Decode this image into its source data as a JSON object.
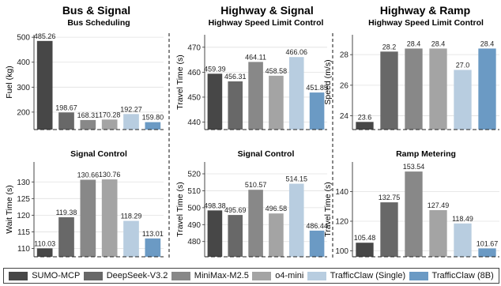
{
  "columns": [
    {
      "title": "Bus & Signal"
    },
    {
      "title": "Highway & Signal"
    },
    {
      "title": "Highway & Ramp"
    }
  ],
  "colors": {
    "SUMO-MCP": "#474747",
    "DeepSeek-V3.2": "#686868",
    "MiniMax-M2.5": "#888888",
    "o4-mini": "#a4a4a4",
    "TrafficClaw (Single)": "#b8cde0",
    "TrafficClaw (8B)": "#6b9ac4"
  },
  "legend": {
    "items": [
      "SUMO-MCP",
      "DeepSeek-V3.2",
      "MiniMax-M2.5",
      "o4-mini",
      "TrafficClaw (Single)",
      "TrafficClaw (8B)"
    ]
  },
  "chart_data": [
    {
      "type": "bar",
      "title": "Bus Scheduling",
      "ylabel": "Fuel (kg)",
      "ylim": [
        130,
        510
      ],
      "yticks": [
        200,
        300,
        400,
        500
      ],
      "categories": [
        "SUMO-MCP",
        "DeepSeek-V3.2",
        "MiniMax-M2.5",
        "o4-mini",
        "TrafficClaw (Single)",
        "TrafficClaw (8B)"
      ],
      "values": [
        485.26,
        198.67,
        168.31,
        170.28,
        192.27,
        159.8
      ],
      "labels": [
        "485.26",
        "198.67",
        "168.31",
        "170.28",
        "192.27",
        "159.80"
      ],
      "grid": true
    },
    {
      "type": "bar",
      "title": "Highway Speed Limit Control",
      "ylabel": "Travel Time (s)",
      "ylim": [
        437,
        475
      ],
      "yticks": [
        440,
        450,
        460,
        470
      ],
      "categories": [
        "SUMO-MCP",
        "DeepSeek-V3.2",
        "MiniMax-M2.5",
        "o4-mini",
        "TrafficClaw (Single)",
        "TrafficClaw (8B)"
      ],
      "values": [
        459.39,
        456.31,
        464.11,
        458.58,
        466.06,
        451.85
      ],
      "labels": [
        "459.39",
        "456.31",
        "464.11",
        "458.58",
        "466.06",
        "451.85"
      ],
      "grid": true
    },
    {
      "type": "bar",
      "title": "Highway Speed Limit Control",
      "ylabel": "Speed (m/s)",
      "ylim": [
        23.1,
        29.3
      ],
      "yticks": [
        24,
        26,
        28
      ],
      "categories": [
        "SUMO-MCP",
        "DeepSeek-V3.2",
        "MiniMax-M2.5",
        "o4-mini",
        "TrafficClaw (Single)",
        "TrafficClaw (8B)"
      ],
      "values": [
        23.6,
        28.2,
        28.4,
        28.4,
        27.0,
        28.4
      ],
      "labels": [
        "23.6",
        "28.2",
        "28.4",
        "28.4",
        "27.0",
        "28.4"
      ],
      "grid": true
    },
    {
      "type": "bar",
      "title": "Signal Control",
      "ylabel": "Wait Time (s)",
      "ylim": [
        107.5,
        136
      ],
      "yticks": [
        110,
        115,
        120,
        125,
        130
      ],
      "categories": [
        "SUMO-MCP",
        "DeepSeek-V3.2",
        "MiniMax-M2.5",
        "o4-mini",
        "TrafficClaw (Single)",
        "TrafficClaw (8B)"
      ],
      "values": [
        110.03,
        119.38,
        130.66,
        130.76,
        118.29,
        113.01
      ],
      "labels": [
        "110.03",
        "119.38",
        "130.66",
        "130.76",
        "118.29",
        "113.01"
      ],
      "grid": true
    },
    {
      "type": "bar",
      "title": "Signal Control",
      "ylabel": "Travel Time (s)",
      "ylim": [
        471,
        527
      ],
      "yticks": [
        480,
        490,
        500,
        510,
        520
      ],
      "categories": [
        "SUMO-MCP",
        "DeepSeek-V3.2",
        "MiniMax-M2.5",
        "o4-mini",
        "TrafficClaw (Single)",
        "TrafficClaw (8B)"
      ],
      "values": [
        498.38,
        495.69,
        510.57,
        496.58,
        514.15,
        486.44
      ],
      "labels": [
        "498.38",
        "495.69",
        "510.57",
        "496.58",
        "514.15",
        "486.44"
      ],
      "grid": true
    },
    {
      "type": "bar",
      "title": "Ramp Metering",
      "ylabel": "Travel Time (s)",
      "ylim": [
        96,
        160
      ],
      "yticks": [
        100,
        120,
        140
      ],
      "categories": [
        "SUMO-MCP",
        "DeepSeek-V3.2",
        "MiniMax-M2.5",
        "o4-mini",
        "TrafficClaw (Single)",
        "TrafficClaw (8B)"
      ],
      "values": [
        105.48,
        132.75,
        153.54,
        127.49,
        118.49,
        101.67
      ],
      "labels": [
        "105.48",
        "132.75",
        "153.54",
        "127.49",
        "118.49",
        "101.67"
      ],
      "grid": true
    }
  ]
}
